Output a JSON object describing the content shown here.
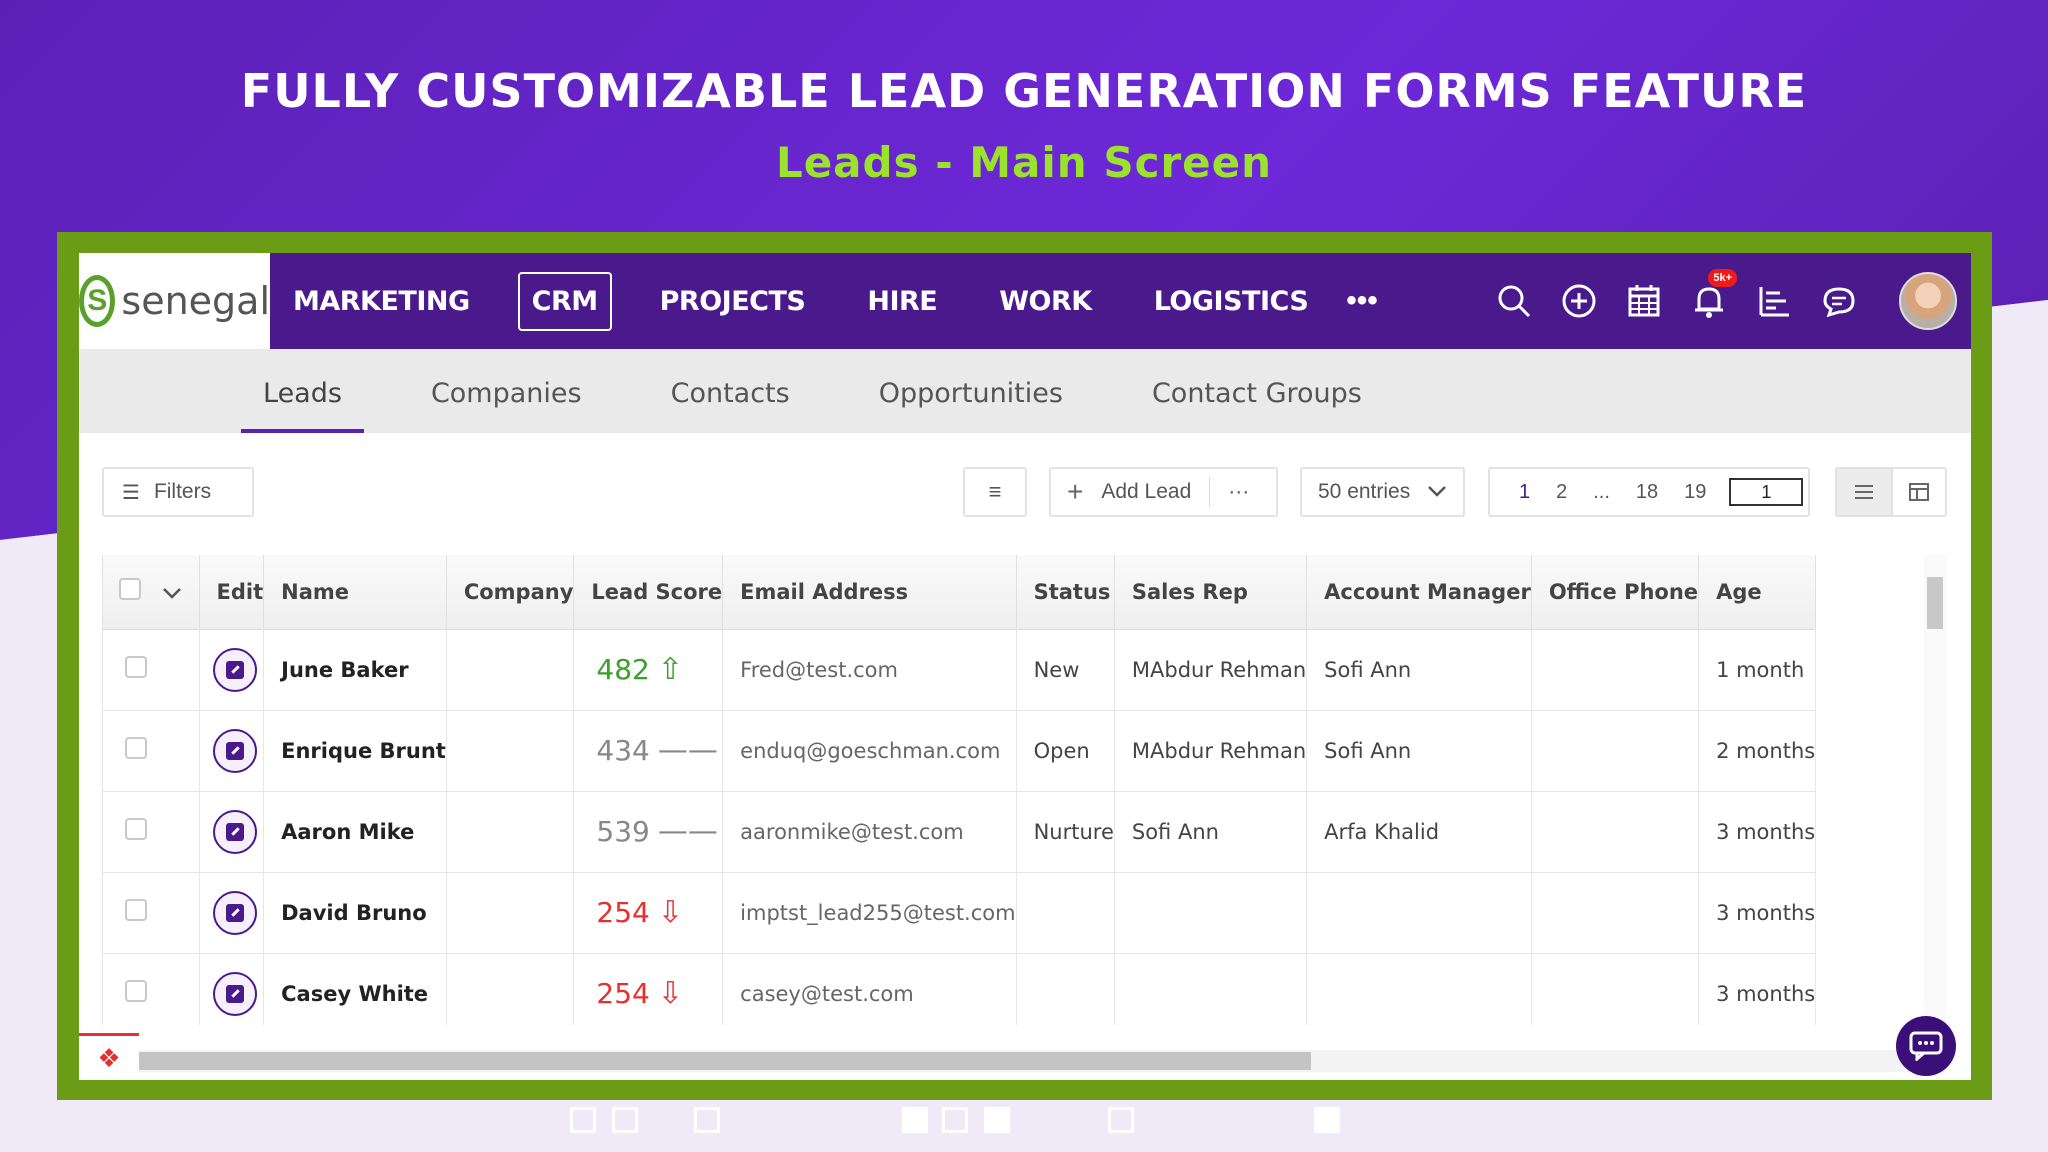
{
  "headline": "FULLY CUSTOMIZABLE LEAD GENERATION FORMS FEATURE",
  "subheadline": "Leads - Main Screen",
  "brand": {
    "name": "senegal",
    "logo_letter": "S"
  },
  "nav": {
    "items": [
      "MARKETING",
      "CRM",
      "PROJECTS",
      "HIRE",
      "WORK",
      "LOGISTICS"
    ],
    "active": "CRM",
    "more": "•••",
    "icons": [
      "search-icon",
      "add-circle-icon",
      "calendar-icon",
      "bell-icon",
      "reports-icon",
      "chat-icon"
    ],
    "notification_badge": "5k+"
  },
  "subtabs": {
    "items": [
      "Leads",
      "Companies",
      "Contacts",
      "Opportunities",
      "Contact Groups"
    ],
    "active": "Leads"
  },
  "toolbar": {
    "filters_label": "Filters",
    "add_lead_label": "Add Lead",
    "more_label": "···",
    "entries_label": "50 entries",
    "pages": [
      "1",
      "2",
      "...",
      "18",
      "19"
    ],
    "current_page": "1"
  },
  "table": {
    "columns": [
      "Edit",
      "Name",
      "Company",
      "Lead Score",
      "Email Address",
      "Status",
      "Sales Rep",
      "Account Manager",
      "Office Phone",
      "Age"
    ],
    "rows": [
      {
        "name": "June Baker",
        "company": "",
        "score": "482",
        "trend": "up",
        "email": "Fred@test.com",
        "status": "New",
        "sales_rep": "MAbdur Rehman",
        "account_manager": "Sofi Ann",
        "office_phone": "",
        "age": "1 month"
      },
      {
        "name": "Enrique Brunt",
        "company": "",
        "score": "434",
        "trend": "flat",
        "email": "enduq@goeschman.com",
        "status": "Open",
        "sales_rep": "MAbdur Rehman",
        "account_manager": "Sofi Ann",
        "office_phone": "",
        "age": "2 months"
      },
      {
        "name": "Aaron Mike",
        "company": "",
        "score": "539",
        "trend": "flat",
        "email": "aaronmike@test.com",
        "status": "Nurture",
        "sales_rep": "Sofi Ann",
        "account_manager": "Arfa Khalid",
        "office_phone": "",
        "age": "3 months"
      },
      {
        "name": "David Bruno",
        "company": "",
        "score": "254",
        "trend": "down",
        "email": "imptst_lead255@test.com",
        "status": "",
        "sales_rep": "",
        "account_manager": "",
        "office_phone": "",
        "age": "3 months"
      },
      {
        "name": "Casey White",
        "company": "",
        "score": "254",
        "trend": "down",
        "email": "casey@test.com",
        "status": "",
        "sales_rep": "",
        "account_manager": "",
        "office_phone": "",
        "age": "3 months"
      }
    ]
  },
  "colors": {
    "nav_bg": "#4a1a8c",
    "frame_green": "#6a9c15",
    "accent_lime": "#9be22d",
    "score_up": "#3aa02a",
    "score_down": "#e53030"
  }
}
